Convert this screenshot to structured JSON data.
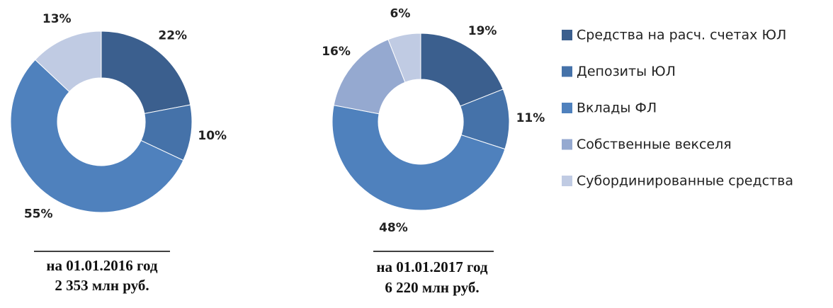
{
  "chart_data": [
    {
      "type": "donut",
      "categories": [
        "Средства на расч. счетах ЮЛ",
        "Депозиты ЮЛ",
        "Вклады ФЛ",
        "Субординированные средства"
      ],
      "values": [
        22,
        10,
        55,
        13
      ],
      "value_labels": [
        "22%",
        "10%",
        "55%",
        "13%"
      ],
      "colors": [
        "#3b5f8e",
        "#4572a9",
        "#4f81bd",
        "#c0cbe3"
      ],
      "caption": [
        "на 01.01.2016 год",
        "2 353 млн руб."
      ]
    },
    {
      "type": "donut",
      "categories": [
        "Средства на расч. счетах ЮЛ",
        "Депозиты ЮЛ",
        "Вклады ФЛ",
        "Собственные векселя",
        "Субординированные средства"
      ],
      "values": [
        19,
        11,
        48,
        16,
        6
      ],
      "value_labels": [
        "19%",
        "11%",
        "48%",
        "16%",
        "6%"
      ],
      "colors": [
        "#3b5f8e",
        "#4572a9",
        "#4f81bd",
        "#95a9d0",
        "#c0cbe3"
      ],
      "caption": [
        "на 01.01.2017 год",
        "6 220 млн руб."
      ],
      "legend": "right"
    }
  ]
}
